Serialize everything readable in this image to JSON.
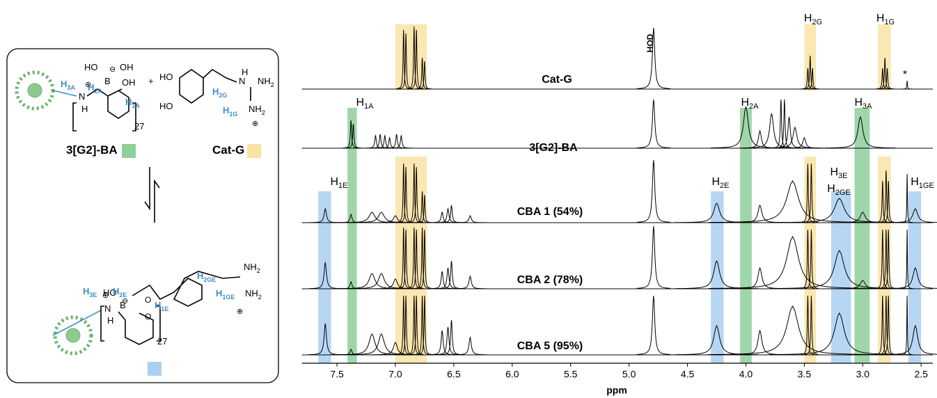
{
  "chart_data": {
    "type": "nmr",
    "x_label": "ppm",
    "xlim": [
      7.8,
      2.4
    ],
    "xticks": [
      7.5,
      {
        "value": 7,
        "label": "7.0"
      },
      6.5,
      {
        "value": 6,
        "label": "6.0"
      },
      5.5,
      {
        "value": 5,
        "label": "5.0"
      },
      4.5,
      {
        "value": 4,
        "label": "4.0"
      },
      3.5,
      {
        "value": 3,
        "label": "3.0"
      },
      2.5
    ],
    "spectra": [
      {
        "name": "Cat-G",
        "color": "#000000",
        "peaks": [
          [
            6.93,
            85,
            0.005
          ],
          [
            6.91,
            80,
            0.005
          ],
          [
            6.84,
            90,
            0.005
          ],
          [
            6.82,
            85,
            0.005
          ],
          [
            6.77,
            45,
            0.005
          ],
          [
            6.75,
            40,
            0.005
          ],
          [
            4.79,
            88,
            0.012
          ],
          [
            3.47,
            30,
            0.005
          ],
          [
            3.45,
            48,
            0.005
          ],
          [
            3.43,
            30,
            0.005
          ],
          [
            2.83,
            30,
            0.005
          ],
          [
            2.81,
            45,
            0.005
          ],
          [
            2.79,
            30,
            0.005
          ],
          [
            2.62,
            12,
            0.003
          ]
        ]
      },
      {
        "name": "3[G2]-BA",
        "color": "#000000",
        "peaks": [
          [
            7.38,
            40,
            0.006
          ],
          [
            7.36,
            35,
            0.006
          ],
          [
            7.17,
            18,
            0.008
          ],
          [
            7.13,
            20,
            0.008
          ],
          [
            7.09,
            18,
            0.008
          ],
          [
            7.05,
            15,
            0.008
          ],
          [
            6.99,
            20,
            0.008
          ],
          [
            6.95,
            18,
            0.008
          ],
          [
            4.79,
            70,
            0.012
          ],
          [
            4.0,
            60,
            0.025
          ],
          [
            3.88,
            25,
            0.015
          ],
          [
            3.78,
            50,
            0.02
          ],
          [
            3.7,
            70,
            0.006
          ],
          [
            3.67,
            70,
            0.006
          ],
          [
            3.63,
            45,
            0.012
          ],
          [
            3.58,
            30,
            0.02
          ],
          [
            3.5,
            15,
            0.015
          ],
          [
            3.02,
            45,
            0.025
          ]
        ]
      },
      {
        "name": "CBA 1 (54%)",
        "color": "#000000",
        "peaks": [
          [
            7.6,
            20,
            0.012
          ],
          [
            7.38,
            12,
            0.01
          ],
          [
            7.2,
            15,
            0.03
          ],
          [
            7.12,
            15,
            0.03
          ],
          [
            7.0,
            10,
            0.02
          ],
          [
            6.93,
            85,
            0.005
          ],
          [
            6.91,
            80,
            0.005
          ],
          [
            6.84,
            85,
            0.005
          ],
          [
            6.82,
            80,
            0.005
          ],
          [
            6.77,
            45,
            0.005
          ],
          [
            6.75,
            40,
            0.005
          ],
          [
            6.6,
            15,
            0.01
          ],
          [
            6.55,
            20,
            0.01
          ],
          [
            6.52,
            25,
            0.008
          ],
          [
            6.36,
            10,
            0.012
          ],
          [
            4.79,
            90,
            0.012
          ],
          [
            4.25,
            28,
            0.03
          ],
          [
            3.88,
            25,
            0.02
          ],
          [
            3.6,
            60,
            0.06
          ],
          [
            3.47,
            85,
            0.005
          ],
          [
            3.44,
            85,
            0.005
          ],
          [
            3.2,
            35,
            0.05
          ],
          [
            3.0,
            15,
            0.025
          ],
          [
            2.83,
            60,
            0.005
          ],
          [
            2.8,
            75,
            0.005
          ],
          [
            2.78,
            60,
            0.005
          ],
          [
            2.62,
            70,
            0.003
          ],
          [
            2.55,
            20,
            0.025
          ]
        ]
      },
      {
        "name": "CBA 2 (78%)",
        "color": "#000000",
        "peaks": [
          [
            7.6,
            38,
            0.012
          ],
          [
            7.38,
            10,
            0.01
          ],
          [
            7.2,
            22,
            0.03
          ],
          [
            7.12,
            22,
            0.03
          ],
          [
            7.0,
            14,
            0.02
          ],
          [
            6.93,
            88,
            0.005
          ],
          [
            6.91,
            85,
            0.005
          ],
          [
            6.84,
            88,
            0.005
          ],
          [
            6.82,
            85,
            0.005
          ],
          [
            6.77,
            88,
            0.005
          ],
          [
            6.75,
            85,
            0.005
          ],
          [
            6.6,
            25,
            0.01
          ],
          [
            6.55,
            30,
            0.01
          ],
          [
            6.52,
            40,
            0.008
          ],
          [
            6.36,
            18,
            0.012
          ],
          [
            4.79,
            90,
            0.012
          ],
          [
            4.25,
            40,
            0.03
          ],
          [
            3.88,
            30,
            0.02
          ],
          [
            3.6,
            75,
            0.06
          ],
          [
            3.47,
            85,
            0.005
          ],
          [
            3.44,
            85,
            0.005
          ],
          [
            3.2,
            55,
            0.05
          ],
          [
            3.0,
            12,
            0.025
          ],
          [
            2.83,
            85,
            0.005
          ],
          [
            2.8,
            85,
            0.005
          ],
          [
            2.78,
            85,
            0.005
          ],
          [
            2.62,
            85,
            0.003
          ],
          [
            2.55,
            30,
            0.025
          ]
        ]
      },
      {
        "name": "CBA 5 (95%)",
        "color": "#000000",
        "peaks": [
          [
            7.6,
            45,
            0.012
          ],
          [
            7.38,
            8,
            0.01
          ],
          [
            7.2,
            30,
            0.03
          ],
          [
            7.12,
            30,
            0.03
          ],
          [
            7.0,
            18,
            0.02
          ],
          [
            6.93,
            85,
            0.005
          ],
          [
            6.91,
            85,
            0.005
          ],
          [
            6.84,
            85,
            0.005
          ],
          [
            6.82,
            85,
            0.005
          ],
          [
            6.77,
            85,
            0.005
          ],
          [
            6.75,
            85,
            0.005
          ],
          [
            6.6,
            35,
            0.01
          ],
          [
            6.55,
            40,
            0.01
          ],
          [
            6.52,
            50,
            0.008
          ],
          [
            6.36,
            25,
            0.012
          ],
          [
            4.79,
            85,
            0.012
          ],
          [
            4.25,
            42,
            0.03
          ],
          [
            3.88,
            35,
            0.02
          ],
          [
            3.6,
            70,
            0.06
          ],
          [
            3.47,
            85,
            0.005
          ],
          [
            3.44,
            85,
            0.005
          ],
          [
            3.2,
            60,
            0.05
          ],
          [
            2.83,
            85,
            0.005
          ],
          [
            2.8,
            85,
            0.005
          ],
          [
            2.78,
            85,
            0.005
          ],
          [
            2.62,
            85,
            0.003
          ],
          [
            2.55,
            42,
            0.025
          ]
        ]
      }
    ],
    "highlights": [
      {
        "from": 7.0,
        "to": 6.73,
        "color": "#f9e3a3"
      },
      {
        "from": 7.0,
        "to": 6.73,
        "color": "#f9e3a3"
      },
      {
        "from": 7.41,
        "to": 7.33,
        "color": "#8ecf9a"
      },
      {
        "from": 7.66,
        "to": 7.55,
        "color": "#a9cff2"
      },
      {
        "from": 4.05,
        "to": 3.95,
        "color": "#8ecf9a"
      },
      {
        "from": 4.3,
        "to": 4.19,
        "color": "#a9cff2"
      },
      {
        "from": 3.5,
        "to": 3.4,
        "color": "#f9e3a3"
      },
      {
        "from": 3.5,
        "to": 3.4,
        "color": "#f9e3a3"
      },
      {
        "from": 3.07,
        "to": 2.94,
        "color": "#8ecf9a"
      },
      {
        "from": 3.27,
        "to": 3.1,
        "color": "#a9cff2"
      },
      {
        "from": 2.87,
        "to": 2.76,
        "color": "#f9e3a3"
      },
      {
        "from": 2.87,
        "to": 2.76,
        "color": "#f9e3a3"
      },
      {
        "from": 2.61,
        "to": 2.5,
        "color": "#a9cff2"
      }
    ],
    "peak_labels": [
      {
        "text": "HOD"
      },
      {
        "text": "*"
      },
      {
        "text": "H",
        "sub": "2G"
      },
      {
        "text": "H",
        "sub": "1G"
      },
      {
        "text": "H",
        "sub": "1A"
      },
      {
        "text": "H",
        "sub": "2A"
      },
      {
        "text": "H",
        "sub": "3A"
      },
      {
        "text": "H",
        "sub": "1E"
      },
      {
        "text": "H",
        "sub": "2E"
      },
      {
        "text": "H",
        "sub": "3E"
      },
      {
        "text": "H",
        "sub": "2GE"
      },
      {
        "text": "H",
        "sub": "1GE"
      }
    ]
  },
  "scheme": {
    "labels": [
      {
        "text": "HO"
      },
      {
        "text": "B"
      },
      {
        "text": "OH"
      },
      {
        "text": "OH"
      },
      {
        "text": "H",
        "sub": "3A"
      },
      {
        "text": "N"
      },
      {
        "text": "H"
      },
      {
        "text": "H",
        "sub": "2A"
      },
      {
        "text": "H",
        "sub": "1A"
      },
      {
        "text": "27"
      },
      {
        "text": "+"
      },
      {
        "text": "HO"
      },
      {
        "text": "HO"
      },
      {
        "text": "H",
        "sub": "2G"
      },
      {
        "text": "H",
        "sub": "1G"
      },
      {
        "text": "H"
      },
      {
        "text": "N"
      },
      {
        "text": "NH",
        "sub": "2"
      },
      {
        "text": "NH",
        "sub": "2"
      },
      {
        "text": "3[G2]-BA"
      },
      {
        "text": "Cat-G"
      },
      {
        "text": "HO"
      },
      {
        "text": "B"
      },
      {
        "text": "H",
        "sub": "2GE"
      },
      {
        "text": "H",
        "sub": "1GE"
      },
      {
        "text": "NH",
        "sub": "2"
      },
      {
        "text": "NH",
        "sub": "2"
      },
      {
        "text": "H",
        "sub": "3E"
      },
      {
        "text": "H",
        "sub": "2E"
      },
      {
        "text": "N"
      },
      {
        "text": "H"
      },
      {
        "text": "H",
        "sub": "1E"
      },
      {
        "text": "27"
      }
    ]
  }
}
